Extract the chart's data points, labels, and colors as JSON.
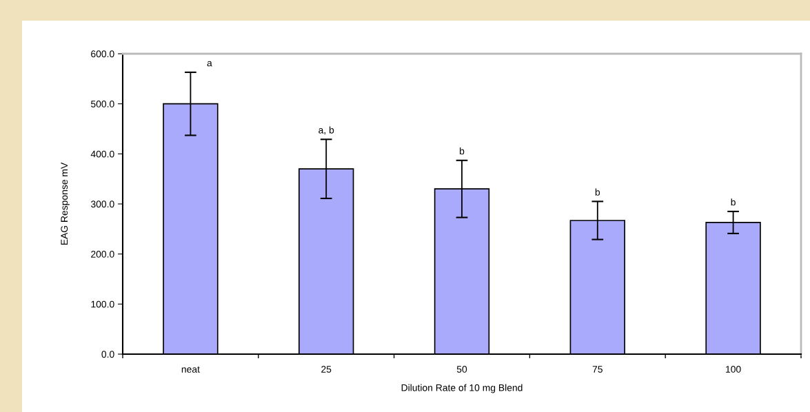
{
  "chart_data": {
    "type": "bar",
    "xlabel": "Dilution Rate of 10 mg Blend",
    "ylabel": "EAG Response mV",
    "categories": [
      "neat",
      "25",
      "50",
      "75",
      "100"
    ],
    "values": [
      500,
      370,
      330,
      267,
      263
    ],
    "errors": [
      63,
      59,
      57,
      38,
      22
    ],
    "color": "#aaaafc",
    "ylim": [
      0,
      600
    ],
    "yticks": [
      {
        "value": 0,
        "label": "0.0"
      },
      {
        "value": 100,
        "label": "100.0"
      },
      {
        "value": 200,
        "label": "200.0"
      },
      {
        "value": 300,
        "label": "300.0"
      },
      {
        "value": 400,
        "label": "400.0"
      },
      {
        "value": 500,
        "label": "500.0"
      },
      {
        "value": 600,
        "label": "600.0"
      }
    ],
    "grid": false,
    "annotations": [
      {
        "text": "a",
        "x": "neat",
        "y": 563
      },
      {
        "text": "a, b",
        "x": "25",
        "y": 429
      },
      {
        "text": "b",
        "x": "50",
        "y": 387
      },
      {
        "text": "b",
        "x": "75",
        "y": 305
      },
      {
        "text": "b",
        "x": "100",
        "y": 285
      }
    ]
  }
}
